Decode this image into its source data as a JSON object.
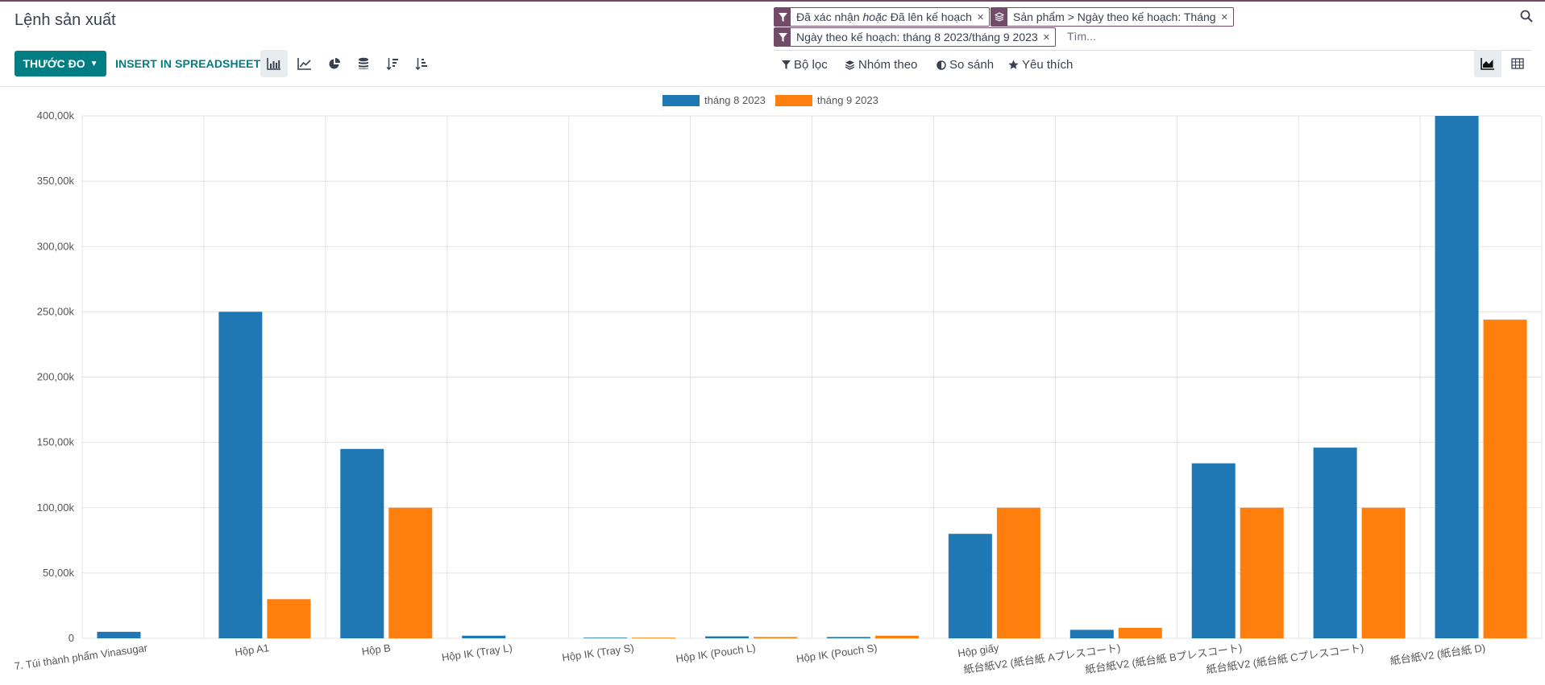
{
  "app": {
    "title": "Lệnh sản xuất",
    "search_placeholder": "Tìm...",
    "accent": "#714b67",
    "primary": "#017e84"
  },
  "facets": [
    {
      "icon": "filter-icon",
      "parts": [
        "Đã xác nhận ",
        "hoặc",
        " Đã lên kế hoạch"
      ]
    },
    {
      "icon": "layers-icon",
      "parts": [
        "Sản phẩm",
        " > ",
        "Ngày theo kế hoạch: Tháng"
      ]
    },
    {
      "icon": "filter-icon",
      "parts": [
        "Ngày theo kế hoạch: tháng 8 2023/tháng 9 2023"
      ]
    }
  ],
  "toolbar": {
    "measure_label": "THƯỚC ĐO",
    "insert_label": "INSERT IN SPREADSHEET"
  },
  "filters": {
    "filter_label": "Bộ lọc",
    "group_label": "Nhóm theo",
    "compare_label": "So sánh",
    "favorite_label": "Yêu thích"
  },
  "chart_data": {
    "type": "bar",
    "categories": [
      "7. Túi thành phẩm Vinasugar",
      "Hộp A1",
      "Hộp B",
      "Hộp IK (Tray L)",
      "Hộp IK (Tray S)",
      "Hộp IK (Pouch L)",
      "Hộp IK (Pouch S)",
      "Hộp giấy",
      "紙台紙V2 (紙台紙 Aプレスコート)",
      "紙台紙V2 (紙台紙 Bプレスコート)",
      "紙台紙V2 (紙台紙 Cプレスコート)",
      "紙台紙V2 (紙台紙 D)"
    ],
    "series": [
      {
        "name": "tháng 8 2023",
        "color": "#1f77b4",
        "values": [
          5000,
          250000,
          145000,
          2000,
          500,
          1500,
          1000,
          80000,
          6500,
          134000,
          146000,
          400000
        ]
      },
      {
        "name": "tháng 9 2023",
        "color": "#ff7f0e",
        "values": [
          0,
          30000,
          100000,
          0,
          500,
          1000,
          2000,
          100000,
          8000,
          100000,
          100000,
          244000
        ]
      }
    ],
    "ylim": [
      0,
      400000
    ],
    "yticks": [
      0,
      50000,
      100000,
      150000,
      200000,
      250000,
      300000,
      350000,
      400000
    ],
    "ytick_labels": [
      "0",
      "50,00k",
      "100,00k",
      "150,00k",
      "200,00k",
      "250,00k",
      "300,00k",
      "350,00k",
      "400,00k"
    ],
    "legend_position": "top-center",
    "grid": true
  }
}
